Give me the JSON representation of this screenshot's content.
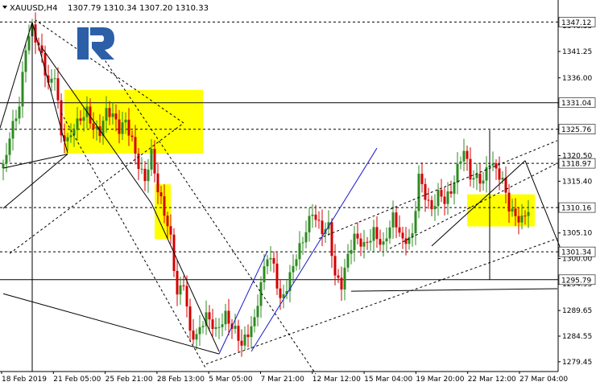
{
  "header": {
    "symbol_label": "XAUUSD,H4",
    "ohlc": "1307.79 1310.34 1307.20 1310.33"
  },
  "logo": {
    "name": "r-logo",
    "color": "#2c5fa8"
  },
  "colors": {
    "bull_candle": "#2e8b22",
    "bear_candle": "#d40000",
    "zone": "#ffff00",
    "channel": "#1a1acc",
    "lines": "#000000"
  },
  "chart_data": {
    "type": "candlestick",
    "symbol": "XAUUSD",
    "timeframe": "H4",
    "ylim": [
      1277.5,
      1351.5
    ],
    "y_ticks": [
      "1279.45",
      "1284.55",
      "1289.65",
      "1294.95",
      "1300.00",
      "1305.10",
      "1310.20",
      "1315.40",
      "1320.50",
      "1325.75",
      "1331.04",
      "1336.00",
      "1341.25",
      "1346.35"
    ],
    "x_ticks": [
      "18 Feb 2019",
      "21 Feb 05:00",
      "25 Feb 21:00",
      "28 Feb 13:00",
      "5 Mar 05:00",
      "7 Mar 21:00",
      "12 Mar 12:00",
      "15 Mar 04:00",
      "19 Mar 20:00",
      "22 Mar 12:00",
      "27 Mar 04:00"
    ],
    "level_labels": [
      {
        "text": "1347.12",
        "value": 1347.12
      },
      {
        "text": "1331.04",
        "value": 1331.04
      },
      {
        "text": "1325.76",
        "value": 1325.76
      },
      {
        "text": "1318.97",
        "value": 1318.97
      },
      {
        "text": "1310.16",
        "value": 1310.16
      },
      {
        "text": "1301.34",
        "value": 1301.34
      },
      {
        "text": "1295.79",
        "value": 1295.79
      }
    ],
    "current_price": {
      "text": "1310.33",
      "value": 1310.33
    },
    "zones": [
      {
        "i0": 19,
        "i1": 62,
        "lo": 1320.9,
        "hi": 1333.6
      },
      {
        "i0": 47,
        "i1": 52,
        "lo": 1303.9,
        "hi": 1314.8
      },
      {
        "i0": 144,
        "i1": 165,
        "lo": 1306.4,
        "hi": 1312.8
      }
    ],
    "close_path": [
      [
        0,
        1318
      ],
      [
        2,
        1323
      ],
      [
        5,
        1329
      ],
      [
        7,
        1342
      ],
      [
        9,
        1347
      ],
      [
        12,
        1342
      ],
      [
        14,
        1335
      ],
      [
        16,
        1336
      ],
      [
        18,
        1323
      ],
      [
        20,
        1322
      ],
      [
        22,
        1326
      ],
      [
        24,
        1329
      ],
      [
        26,
        1331
      ],
      [
        28,
        1327
      ],
      [
        30,
        1325
      ],
      [
        32,
        1328
      ],
      [
        34,
        1327
      ],
      [
        36,
        1325
      ],
      [
        38,
        1328
      ],
      [
        40,
        1325
      ],
      [
        42,
        1320
      ],
      [
        44,
        1316
      ],
      [
        46,
        1320
      ],
      [
        48,
        1312
      ],
      [
        50,
        1308
      ],
      [
        52,
        1304
      ],
      [
        54,
        1294
      ],
      [
        56,
        1297
      ],
      [
        58,
        1286
      ],
      [
        60,
        1284
      ],
      [
        63,
        1287
      ],
      [
        66,
        1285
      ],
      [
        69,
        1290
      ],
      [
        72,
        1287
      ],
      [
        74,
        1283
      ],
      [
        76,
        1284
      ],
      [
        78,
        1286
      ],
      [
        80,
        1294
      ],
      [
        82,
        1301
      ],
      [
        84,
        1300
      ],
      [
        86,
        1293
      ],
      [
        88,
        1295
      ],
      [
        90,
        1298
      ],
      [
        93,
        1302
      ],
      [
        96,
        1309
      ],
      [
        99,
        1307
      ],
      [
        101,
        1308
      ],
      [
        103,
        1297
      ],
      [
        105,
        1294
      ],
      [
        107,
        1299
      ],
      [
        109,
        1303
      ],
      [
        112,
        1303
      ],
      [
        115,
        1307
      ],
      [
        118,
        1303
      ],
      [
        121,
        1307
      ],
      [
        124,
        1302
      ],
      [
        127,
        1305
      ],
      [
        129,
        1318
      ],
      [
        131,
        1314
      ],
      [
        133,
        1310
      ],
      [
        135,
        1312
      ],
      [
        137,
        1310
      ],
      [
        139,
        1312
      ],
      [
        141,
        1318
      ],
      [
        143,
        1323
      ],
      [
        145,
        1318
      ],
      [
        147,
        1317
      ],
      [
        149,
        1315
      ],
      [
        151,
        1318
      ],
      [
        153,
        1316
      ],
      [
        155,
        1315
      ],
      [
        157,
        1311
      ],
      [
        159,
        1310
      ],
      [
        161,
        1309
      ],
      [
        163,
        1310
      ]
    ]
  }
}
